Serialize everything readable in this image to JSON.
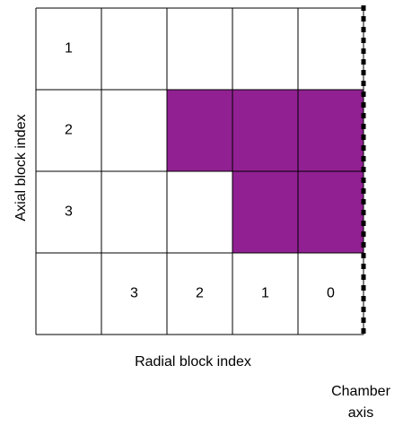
{
  "grid": {
    "rows": 4,
    "cols": 5,
    "filled_color": "#912192",
    "empty_color": "#ffffff",
    "line_color": "#000000",
    "filled_cells": [
      {
        "row": 1,
        "col": 2
      },
      {
        "row": 1,
        "col": 3
      },
      {
        "row": 1,
        "col": 4
      },
      {
        "row": 2,
        "col": 3
      },
      {
        "row": 2,
        "col": 4
      }
    ]
  },
  "axial_indices": [
    "1",
    "2",
    "3"
  ],
  "radial_indices": [
    "3",
    "2",
    "1",
    "0"
  ],
  "labels": {
    "axial_axis": "Axial block index",
    "radial_axis": "Radial block index",
    "chamber_axis_line1": "Chamber",
    "chamber_axis_line2": "axis"
  }
}
